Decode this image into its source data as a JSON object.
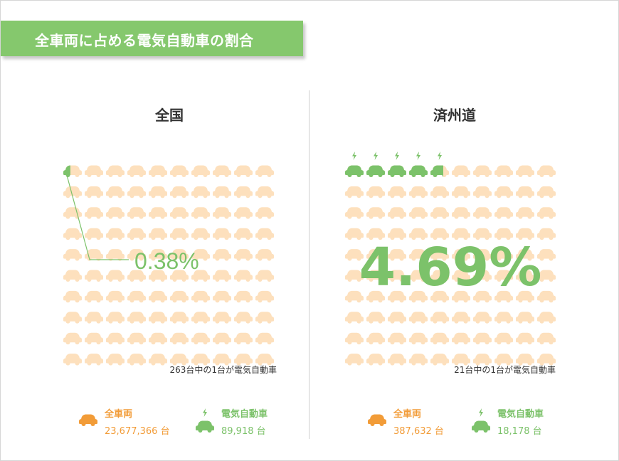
{
  "title": "全車両に占める電気自動車の割合",
  "colors": {
    "banner": "#85c86d",
    "ev": "#7cc26a",
    "car_light": "#fde0bd",
    "car_dark": "#f29c38",
    "text": "#333333"
  },
  "chart_data": [
    {
      "type": "pictogram",
      "region": "全国",
      "percent_label": "0.38%",
      "ev_share": 0.0038,
      "grid": {
        "rows": 10,
        "cols": 10
      },
      "caption": "263台中の1台が電気自動車",
      "legend": [
        {
          "label": "全車両",
          "value": "23,677,366 台",
          "icon": "car-icon"
        },
        {
          "label": "電気自動車",
          "value": "89,918 台",
          "icon": "ev-car-icon"
        }
      ]
    },
    {
      "type": "pictogram",
      "region": "済州道",
      "percent_label": "4.69%",
      "ev_share": 0.0469,
      "grid": {
        "rows": 10,
        "cols": 10
      },
      "caption": "21台中の1台が電気自動車",
      "legend": [
        {
          "label": "全車両",
          "value": "387,632 台",
          "icon": "car-icon"
        },
        {
          "label": "電気自動車",
          "value": "18,178 台",
          "icon": "ev-car-icon"
        }
      ]
    }
  ]
}
